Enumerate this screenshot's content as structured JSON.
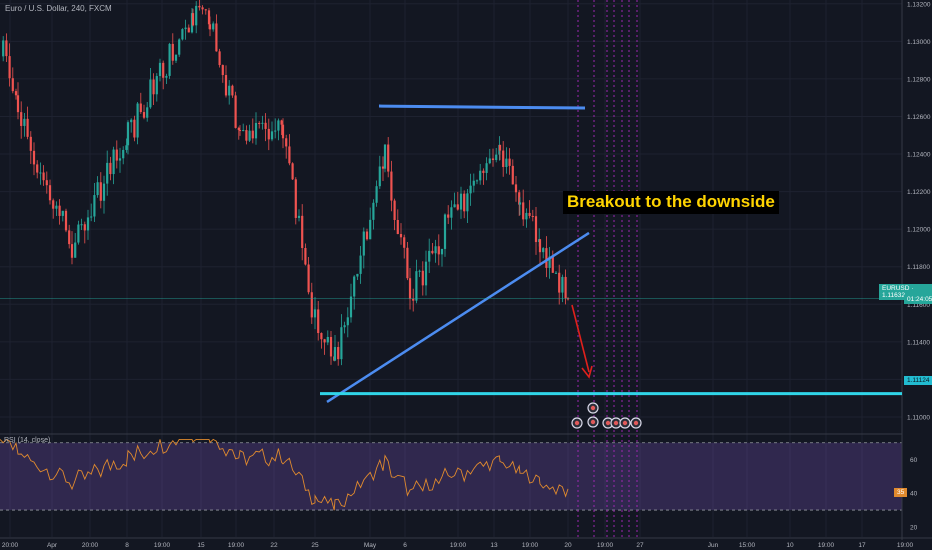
{
  "symbol_title": "Euro / U.S. Dollar, 240, FXCM",
  "rsi_title": "RSI (14, close)",
  "annotation": "Breakout to the downside",
  "price_tag_label": "EURUSD · 1.11632",
  "countdown": "01:24:05",
  "level_tag": "1.11124",
  "rsi_value_tag": "35",
  "colors": {
    "background": "#131722",
    "up_candle": "#26a69a",
    "down_candle": "#ef5350",
    "trendline": "#4c8cf0",
    "support": "#30d5e8",
    "rsi_line": "#e08a2e",
    "rsi_band": "#7e57c2",
    "annotation_text": "#ffd400",
    "arrow": "#e0201c"
  },
  "chart_data": {
    "type": "candlestick",
    "timeframe": "240",
    "price_axis": {
      "ticks": [
        "1.13200",
        "1.13000",
        "1.12800",
        "1.12600",
        "1.12400",
        "1.12200",
        "1.12000",
        "1.11800",
        "1.11600",
        "1.11400",
        "1.11200",
        "1.11000"
      ],
      "ylim": [
        1.1092,
        1.1322
      ]
    },
    "time_axis": {
      "ticks": [
        "20:00",
        "Apr",
        "20:00",
        "8",
        "19:00",
        "15",
        "19:00",
        "22",
        "25",
        "May",
        "6",
        "19:00",
        "13",
        "19:00",
        "20",
        "19:00",
        "27",
        "Jun",
        "15:00",
        "10",
        "19:00",
        "17",
        "19:00"
      ]
    },
    "rsi": {
      "period": 14,
      "source": "close",
      "levels": [
        70,
        30
      ],
      "ticks": [
        "60",
        "40",
        "20"
      ],
      "ylim": [
        14,
        74
      ],
      "last_value": 35
    },
    "ohlc_keypoints": [
      {
        "time": "Mar 29",
        "close": 1.13
      },
      {
        "time": "Apr 1",
        "close": 1.126
      },
      {
        "time": "Apr 4",
        "close": 1.119
      },
      {
        "time": "Apr 11",
        "close": 1.125
      },
      {
        "time": "Apr 12",
        "close": 1.1315
      },
      {
        "time": "Apr 15",
        "close": 1.131
      },
      {
        "time": "Apr 18",
        "close": 1.125
      },
      {
        "time": "Apr 22",
        "close": 1.1252
      },
      {
        "time": "Apr 24",
        "close": 1.115
      },
      {
        "time": "Apr 26",
        "close": 1.113
      },
      {
        "time": "May 1",
        "close": 1.124
      },
      {
        "time": "May 3",
        "close": 1.1165
      },
      {
        "time": "May 8",
        "close": 1.12
      },
      {
        "time": "May 13",
        "close": 1.124
      },
      {
        "time": "May 15",
        "close": 1.1215
      },
      {
        "time": "May 17",
        "close": 1.119
      },
      {
        "time": "May 20",
        "close": 1.1163
      }
    ],
    "last_price": 1.11632,
    "drawings": {
      "resistance": {
        "price": 1.1265
      },
      "rising_trendline": {
        "from_price": 1.1108,
        "to_price": 1.1198
      },
      "support": {
        "price": 1.11124
      }
    }
  }
}
